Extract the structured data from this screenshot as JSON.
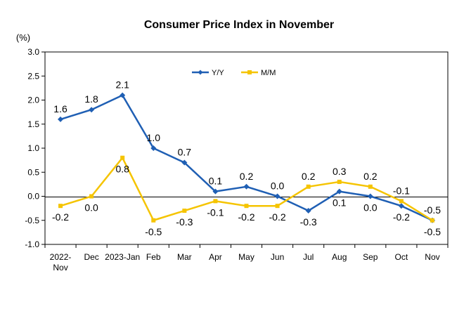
{
  "chart_data": {
    "type": "line",
    "title": "Consumer Price Index in November",
    "y_unit": "(%)",
    "categories": [
      [
        "2022-",
        "Nov"
      ],
      [
        "Dec"
      ],
      [
        "2023-Jan"
      ],
      [
        "Feb"
      ],
      [
        "Mar"
      ],
      [
        "Apr"
      ],
      [
        "May"
      ],
      [
        "Jun"
      ],
      [
        "Jul"
      ],
      [
        "Aug"
      ],
      [
        "Sep"
      ],
      [
        "Oct"
      ],
      [
        "Nov"
      ]
    ],
    "ylim": [
      -1.0,
      3.0
    ],
    "yticks": [
      -1.0,
      -0.5,
      0.0,
      0.5,
      1.0,
      1.5,
      2.0,
      2.5,
      3.0
    ],
    "ytick_labels": [
      "-1.0",
      "-0.5",
      "0.0",
      "0.5",
      "1.0",
      "1.5",
      "2.0",
      "2.5",
      "3.0"
    ],
    "grid": false,
    "legend_position": "top-center",
    "series": [
      {
        "name": "Y/Y",
        "color": "#1F5FB4",
        "marker": "diamond",
        "values": [
          1.6,
          1.8,
          2.1,
          1.0,
          0.7,
          0.1,
          0.2,
          0.0,
          -0.3,
          0.1,
          0.0,
          -0.2,
          -0.5
        ],
        "labels": [
          "1.6",
          "1.8",
          "2.1",
          "1.0",
          "0.7",
          "0.1",
          "0.2",
          "0.0",
          "-0.3",
          "0.1",
          "0.0",
          "-0.2",
          "-0.5"
        ],
        "label_positions": [
          "above",
          "above",
          "above",
          "above",
          "above",
          "above",
          "above",
          "above",
          "below",
          "below",
          "below",
          "below",
          "below"
        ]
      },
      {
        "name": "M/M",
        "color": "#F5C400",
        "marker": "square",
        "values": [
          -0.2,
          0.0,
          0.8,
          -0.5,
          -0.3,
          -0.1,
          -0.2,
          -0.2,
          0.2,
          0.3,
          0.2,
          -0.1,
          -0.5
        ],
        "labels": [
          "-0.2",
          "0.0",
          "0.8",
          "-0.5",
          "-0.3",
          "-0.1",
          "-0.2",
          "-0.2",
          "0.2",
          "0.3",
          "0.2",
          "-0.1",
          "-0.5"
        ],
        "label_positions": [
          "below",
          "below",
          "below",
          "below",
          "below",
          "below",
          "below",
          "below",
          "above",
          "above",
          "above",
          "above",
          "above"
        ]
      }
    ]
  }
}
